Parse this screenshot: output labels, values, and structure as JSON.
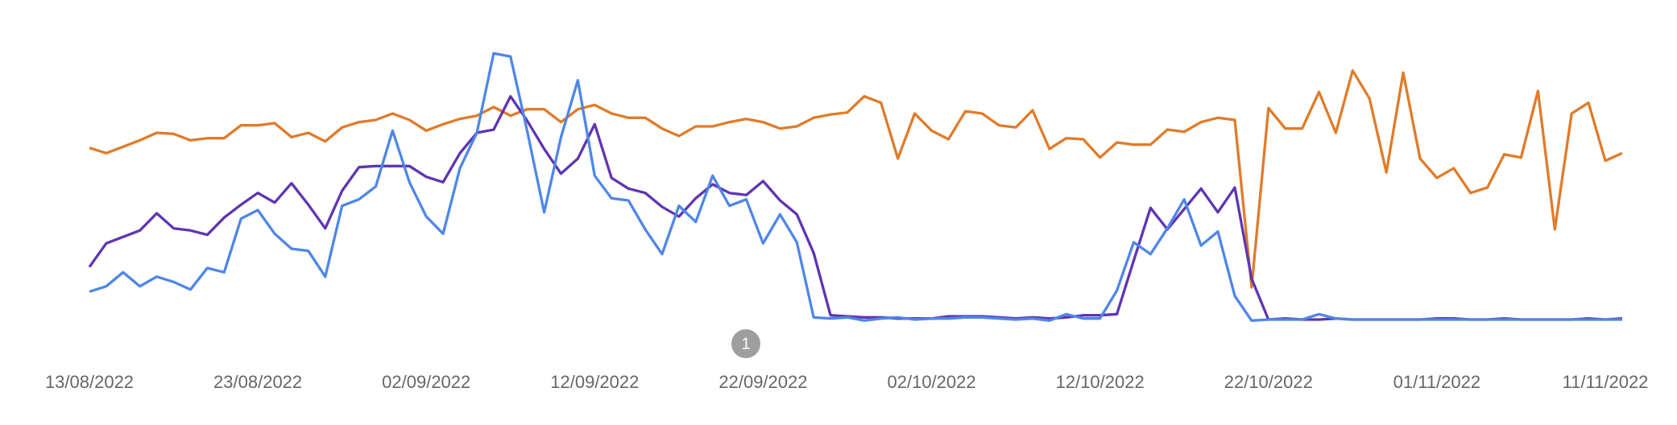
{
  "chart_data": {
    "type": "line",
    "categories": [
      "13/08/2022",
      null,
      null,
      null,
      null,
      null,
      null,
      null,
      null,
      null,
      "23/08/2022",
      null,
      null,
      null,
      null,
      null,
      null,
      null,
      null,
      null,
      "02/09/2022",
      null,
      null,
      null,
      null,
      null,
      null,
      null,
      null,
      null,
      "12/09/2022",
      null,
      null,
      null,
      null,
      null,
      null,
      null,
      null,
      null,
      "22/09/2022",
      null,
      null,
      null,
      null,
      null,
      null,
      null,
      null,
      null,
      "02/10/2022",
      null,
      null,
      null,
      null,
      null,
      null,
      null,
      null,
      null,
      "12/10/2022",
      null,
      null,
      null,
      null,
      null,
      null,
      null,
      null,
      null,
      "22/10/2022",
      null,
      null,
      null,
      null,
      null,
      null,
      null,
      null,
      null,
      "01/11/2022",
      null,
      null,
      null,
      null,
      null,
      null,
      null,
      null,
      null,
      "11/11/2022",
      null
    ],
    "series": [
      {
        "color": "#e07b2a",
        "values": [
          172,
          167,
          173,
          179,
          186,
          185,
          179,
          181,
          181,
          193,
          193,
          195,
          182,
          186,
          178,
          191,
          196,
          198,
          204,
          198,
          188,
          194,
          199,
          202,
          210,
          202,
          208,
          208,
          196,
          208,
          212,
          204,
          200,
          200,
          190,
          183,
          192,
          192,
          196,
          199,
          196,
          190,
          192,
          200,
          203,
          205,
          220,
          214,
          162,
          204,
          188,
          180,
          206,
          204,
          193,
          191,
          207,
          171,
          181,
          180,
          163,
          177,
          175,
          175,
          189,
          187,
          196,
          200,
          198,
          42,
          209,
          190,
          190,
          224,
          186,
          244,
          218,
          149,
          242,
          162,
          144,
          153,
          130,
          135,
          166,
          163,
          225,
          96,
          204,
          214,
          160,
          167
        ]
      },
      {
        "color": "#5e35b1",
        "values": [
          61,
          83,
          89,
          95,
          111,
          97,
          95,
          91,
          107,
          119,
          130,
          121,
          139,
          119,
          97,
          132,
          154,
          155,
          155,
          155,
          145,
          140,
          167,
          186,
          189,
          220,
          197,
          171,
          148,
          162,
          194,
          144,
          134,
          130,
          117,
          108,
          125,
          138,
          130,
          128,
          141,
          123,
          110,
          74,
          16,
          15,
          14,
          14,
          13,
          13,
          13,
          15,
          15,
          15,
          14,
          13,
          14,
          13,
          14,
          16,
          16,
          17,
          67,
          116,
          96,
          115,
          134,
          112,
          135,
          50,
          12,
          13,
          12,
          12,
          13,
          12,
          12,
          12,
          12,
          12,
          13,
          13,
          12,
          12,
          13,
          12,
          12,
          12,
          12,
          13,
          12,
          13
        ]
      },
      {
        "color": "#4f86e8",
        "values": [
          38,
          43,
          56,
          43,
          52,
          47,
          40,
          60,
          56,
          106,
          114,
          92,
          78,
          76,
          52,
          118,
          124,
          136,
          188,
          140,
          108,
          92,
          153,
          186,
          260,
          257,
          187,
          112,
          182,
          235,
          146,
          125,
          123,
          96,
          73,
          118,
          103,
          146,
          118,
          124,
          83,
          110,
          84,
          14,
          13,
          14,
          11,
          13,
          14,
          12,
          13,
          13,
          14,
          14,
          13,
          12,
          13,
          11,
          17,
          13,
          13,
          39,
          84,
          73,
          97,
          124,
          81,
          94,
          34,
          11,
          12,
          12,
          12,
          17,
          13,
          12,
          12,
          12,
          12,
          12,
          12,
          12,
          12,
          12,
          12,
          12,
          12,
          12,
          12,
          12,
          12,
          12
        ]
      }
    ],
    "ylim": [
      0,
      270
    ],
    "annotations": [
      "1"
    ]
  }
}
